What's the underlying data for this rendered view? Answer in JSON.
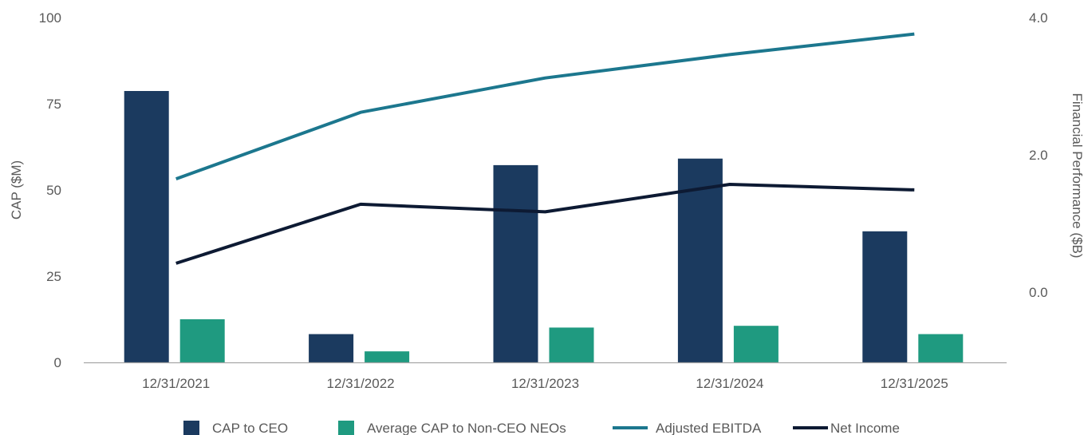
{
  "chart_data": {
    "type": "bar",
    "categories": [
      "12/31/2021",
      "12/31/2022",
      "12/31/2023",
      "12/31/2024",
      "12/31/2025"
    ],
    "y_left": {
      "label": "CAP ($M)",
      "ticks": [
        "0",
        "25",
        "50",
        "75",
        "100"
      ],
      "range": [
        0,
        100
      ]
    },
    "y_right": {
      "label": "Financial Performance ($B)",
      "ticks": [
        "0.0",
        "2.0",
        "4.0"
      ],
      "range": [
        -1.0,
        4.0
      ]
    },
    "series": [
      {
        "name": "CAP to CEO",
        "kind": "bar",
        "axis": "left",
        "color": "#1b3a5f",
        "values": [
          78.7,
          8.2,
          57.2,
          59.1,
          38.0
        ]
      },
      {
        "name": "Average CAP to Non-CEO NEOs",
        "kind": "bar",
        "axis": "left",
        "color": "#1f9a80",
        "values": [
          12.5,
          3.2,
          10.1,
          10.6,
          8.2
        ]
      },
      {
        "name": "Adjusted EBITDA",
        "kind": "line",
        "axis": "right",
        "color": "#1c778e",
        "values": [
          1.65,
          2.62,
          3.12,
          3.46,
          3.76
        ]
      },
      {
        "name": "Net Income",
        "kind": "line",
        "axis": "right",
        "color": "#0d1a33",
        "values": [
          0.42,
          1.28,
          1.17,
          1.57,
          1.49
        ]
      }
    ],
    "legend_position": "bottom",
    "grid": false
  }
}
